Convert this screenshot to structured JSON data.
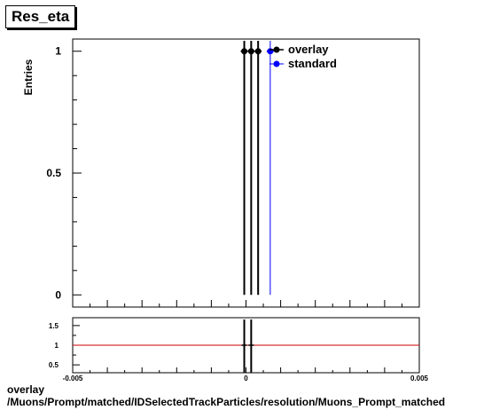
{
  "title": "Res_eta",
  "footer": {
    "line1": "overlay",
    "line2": "/Muons/Prompt/matched/IDSelectedTrackParticles/resolution/Muons_Prompt_matched"
  },
  "colors": {
    "overlay": "#000000",
    "standard": "#0000ff",
    "ratio_line": "#cc0000"
  },
  "chart_data": [
    {
      "type": "scatter",
      "title": "Res_eta",
      "ylabel": "Entries",
      "xlim": [
        -0.005,
        0.005
      ],
      "ylim": [
        -0.05,
        1.05
      ],
      "yticks": [
        {
          "value": 0,
          "label": "0"
        },
        {
          "value": 0.5,
          "label": "0.5"
        },
        {
          "value": 1,
          "label": "1"
        }
      ],
      "legend": {
        "position": "top-right",
        "entries": [
          "overlay",
          "standard"
        ]
      },
      "series": [
        {
          "name": "overlay",
          "x": [
            -5e-05,
            0.00015,
            0.00035
          ],
          "y": [
            1,
            1,
            1
          ]
        },
        {
          "name": "standard",
          "x": [
            0.0007
          ],
          "y": [
            1
          ]
        }
      ]
    },
    {
      "type": "line",
      "ylim": [
        0.3,
        1.7
      ],
      "xlim": [
        -0.005,
        0.005
      ],
      "yticks": [
        {
          "value": 0.5,
          "label": "0.5"
        },
        {
          "value": 1,
          "label": "1"
        },
        {
          "value": 1.5,
          "label": "1.5"
        }
      ],
      "xticks": [
        {
          "value": -0.005,
          "label": "-0.005"
        },
        {
          "value": 0,
          "label": "0"
        },
        {
          "value": 0.005,
          "label": "0.005"
        }
      ],
      "reference_y": 1,
      "series": [
        {
          "x": [
            -5e-05,
            0.00015
          ],
          "y": [
            1,
            1
          ]
        }
      ]
    }
  ]
}
